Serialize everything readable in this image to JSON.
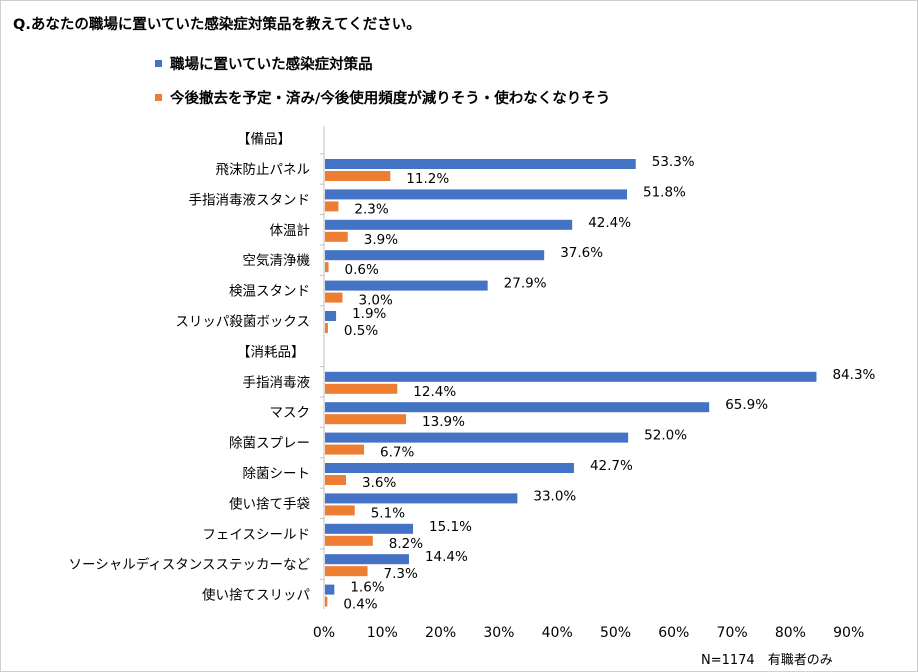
{
  "title": "Q.あなたの職場に置いていた感染症対策品を教えてください。",
  "footnote": "N=1174　有職者のみ",
  "colors": {
    "series1": "#4472C4",
    "series2": "#ED7D31",
    "axis": "#bfbfbf",
    "text": "#000000"
  },
  "chart_data": {
    "type": "bar",
    "orientation": "horizontal",
    "title": "Q.あなたの職場に置いていた感染症対策品を教えてください。",
    "xlabel": "",
    "ylabel": "",
    "xlim": [
      0,
      90
    ],
    "xticks": [
      "0%",
      "10%",
      "20%",
      "30%",
      "40%",
      "50%",
      "60%",
      "70%",
      "80%",
      "90%"
    ],
    "grid": false,
    "legend_position": "top",
    "groups": [
      {
        "label": "【備品】",
        "start": 0
      },
      {
        "label": "【消耗品】",
        "start": 6
      }
    ],
    "categories": [
      "飛沫防止パネル",
      "手指消毒液スタンド",
      "体温計",
      "空気清浄機",
      "検温スタンド",
      "スリッパ殺菌ボックス",
      "手指消毒液",
      "マスク",
      "除菌スプレー",
      "除菌シート",
      "使い捨て手袋",
      "フェイスシールド",
      "ソーシャルディスタンスステッカーなど",
      "使い捨てスリッパ"
    ],
    "series": [
      {
        "name": "職場に置いていた感染症対策品",
        "color": "#4472C4",
        "values": [
          53.3,
          51.8,
          42.4,
          37.6,
          27.9,
          1.9,
          84.3,
          65.9,
          52.0,
          42.7,
          33.0,
          15.1,
          14.4,
          1.6
        ],
        "labels": [
          "53.3%",
          "51.8%",
          "42.4%",
          "37.6%",
          "27.9%",
          "1.9%",
          "84.3%",
          "65.9%",
          "52.0%",
          "42.7%",
          "33.0%",
          "15.1%",
          "14.4%",
          "1.6%"
        ]
      },
      {
        "name": "今後撤去を予定・済み/今後使用頻度が減りそう・使わなくなりそう",
        "color": "#ED7D31",
        "values": [
          11.2,
          2.3,
          3.9,
          0.6,
          3.0,
          0.5,
          12.4,
          13.9,
          6.7,
          3.6,
          5.1,
          8.2,
          7.3,
          0.4
        ],
        "labels": [
          "11.2%",
          "2.3%",
          "3.9%",
          "0.6%",
          "3.0%",
          "0.5%",
          "12.4%",
          "13.9%",
          "6.7%",
          "3.6%",
          "5.1%",
          "8.2%",
          "7.3%",
          "0.4%"
        ]
      }
    ]
  }
}
